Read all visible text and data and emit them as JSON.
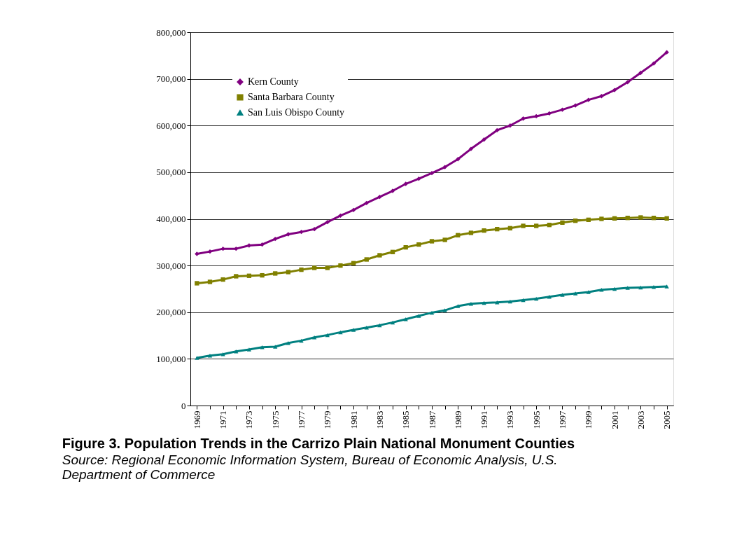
{
  "chart_data": {
    "type": "line",
    "title": "Figure 3. Population Trends in the Carrizo Plain National Monument Counties",
    "annotations": [
      "Source: Regional Economic Information System, Bureau of Economic Analysis, U.S. Department of Commerce"
    ],
    "categories": [
      "1969",
      null,
      "1971",
      null,
      "1973",
      null,
      "1975",
      null,
      "1977",
      null,
      "1979",
      null,
      "1981",
      null,
      "1983",
      null,
      "1985",
      null,
      "1987",
      null,
      "1989",
      null,
      "1991",
      null,
      "1993",
      null,
      "1995",
      null,
      "1997",
      null,
      "1999",
      null,
      "2001",
      null,
      "2003",
      null,
      "2005"
    ],
    "series": [
      {
        "name": "Kern County",
        "color": "#800080",
        "marker": "diamond",
        "values": [
          325000,
          330000,
          336000,
          336000,
          343000,
          345000,
          357000,
          367000,
          372000,
          378000,
          393000,
          407000,
          419000,
          434000,
          447000,
          460000,
          475000,
          486000,
          498000,
          511000,
          528000,
          550000,
          570000,
          590000,
          600000,
          615000,
          620000,
          626000,
          634000,
          643000,
          655000,
          663000,
          676000,
          693000,
          713000,
          733000,
          757000
        ]
      },
      {
        "name": "Santa Barbara County",
        "color": "#808000",
        "marker": "square",
        "values": [
          262000,
          265000,
          270000,
          277000,
          278000,
          279000,
          283000,
          286000,
          291000,
          295000,
          295000,
          300000,
          305000,
          313000,
          322000,
          329000,
          339000,
          345000,
          352000,
          355000,
          365000,
          370000,
          375000,
          378000,
          380000,
          385000,
          385000,
          387000,
          392000,
          396000,
          398000,
          400000,
          401000,
          402000,
          403000,
          402000,
          401000
        ]
      },
      {
        "name": "San Luis Obispo County",
        "color": "#008080",
        "marker": "triangle",
        "values": [
          102000,
          107000,
          110000,
          116000,
          120000,
          125000,
          126000,
          134000,
          139000,
          146000,
          151000,
          157000,
          162000,
          167000,
          172000,
          178000,
          185000,
          192000,
          199000,
          204000,
          213000,
          218000,
          220000,
          221000,
          223000,
          226000,
          229000,
          233000,
          237000,
          240000,
          243000,
          248000,
          250000,
          252000,
          253000,
          254000,
          255000
        ]
      }
    ],
    "ylim": [
      0,
      800000
    ],
    "yticks": [
      {
        "value": 0,
        "label": "0"
      },
      {
        "value": 100000,
        "label": "100,000"
      },
      {
        "value": 200000,
        "label": "200,000"
      },
      {
        "value": 300000,
        "label": "300,000"
      },
      {
        "value": 400000,
        "label": "400,000"
      },
      {
        "value": 500000,
        "label": "500,000"
      },
      {
        "value": 600000,
        "label": "600,000"
      },
      {
        "value": 700000,
        "label": "700,000"
      },
      {
        "value": 800000,
        "label": "800,000"
      }
    ],
    "grid": "y",
    "legend": "top left",
    "line_style": "solid"
  }
}
